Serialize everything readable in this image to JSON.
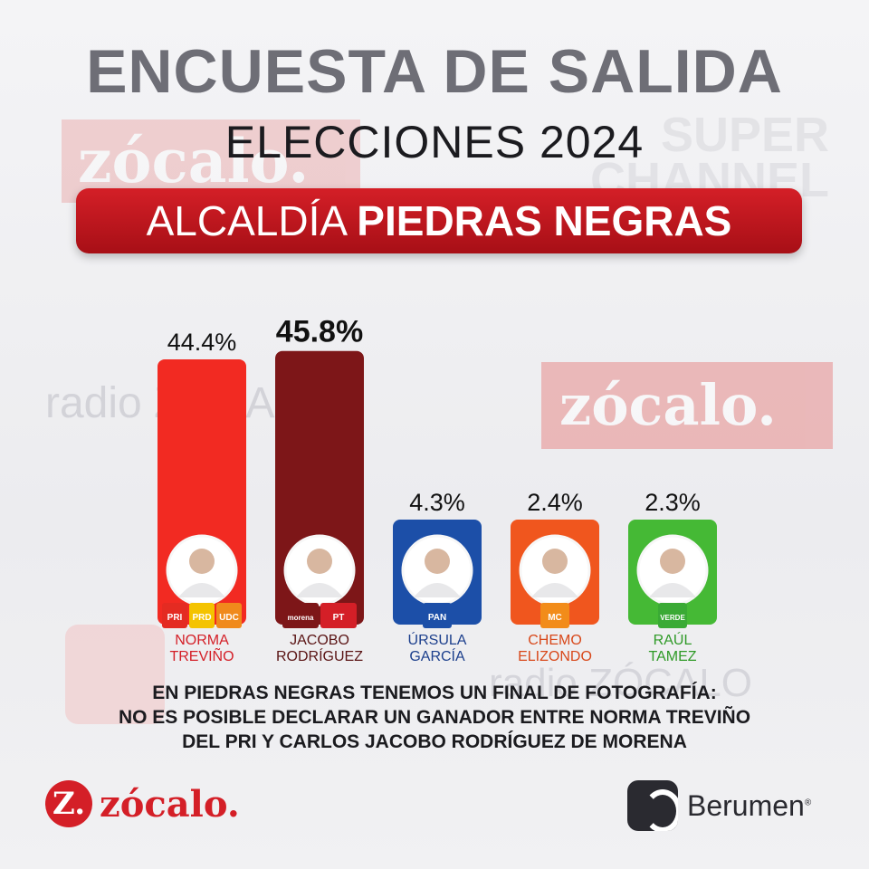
{
  "header": {
    "title": "ENCUESTA DE SALIDA",
    "subtitle": "ELECCIONES 2024",
    "banner_prefix": "ALCALDÍA",
    "banner_place": "PIEDRAS NEGRAS"
  },
  "colors": {
    "banner": "#c4161d",
    "title": "#6e6e76",
    "accent": "#d41f27"
  },
  "chart_data": {
    "type": "bar",
    "title": "",
    "xlabel": "",
    "ylabel": "",
    "ylim": [
      0,
      50
    ],
    "categories": [
      "NORMA TREVIÑO",
      "JACOBO RODRÍGUEZ",
      "ÚRSULA GARCÍA",
      "CHEMO ELIZONDO",
      "RAÚL TAMEZ"
    ],
    "values": [
      44.4,
      45.8,
      4.3,
      2.4,
      2.3
    ],
    "labels": [
      "44.4%",
      "45.8%",
      "4.3%",
      "2.4%",
      "2.3%"
    ],
    "name_lines": [
      [
        "NORMA",
        "TREVIÑO"
      ],
      [
        "JACOBO",
        "RODRÍGUEZ"
      ],
      [
        "ÚRSULA",
        "GARCÍA"
      ],
      [
        "CHEMO",
        "ELIZONDO"
      ],
      [
        "RAÚL",
        "TAMEZ"
      ]
    ],
    "bar_colors": [
      "#f22a22",
      "#7d1618",
      "#1c4fa8",
      "#f0561e",
      "#45b935"
    ],
    "name_colors": [
      "#d41f27",
      "#5a1414",
      "#1c3f8c",
      "#d8481a",
      "#2f9a27"
    ],
    "party_badges": [
      [
        "PRI",
        "PRD",
        "UDC"
      ],
      [
        "morena",
        "PT"
      ],
      [
        "PAN"
      ],
      [
        "MC"
      ],
      [
        "VERDE"
      ]
    ],
    "badge_colors": [
      [
        "#e42b22",
        "#f4c300",
        "#f08a1c"
      ],
      [
        "#7d1618",
        "#d41f27"
      ],
      [
        "#1c4fa8"
      ],
      [
        "#f28c1a"
      ],
      [
        "#3aaa35"
      ]
    ],
    "highlight": 1
  },
  "footnote": {
    "line1": "EN PIEDRAS NEGRAS TENEMOS UN FINAL DE FOTOGRAFÍA:",
    "line2": "NO ES POSIBLE DECLARAR UN GANADOR ENTRE NORMA TREVIÑO",
    "line3": "DEL PRI Y CARLOS JACOBO RODRÍGUEZ DE MORENA"
  },
  "watermarks": {
    "zocalo": "zócalo.",
    "channel": "SUPER CHANNEL",
    "radio": "radio ZÓCALO"
  },
  "logos": {
    "zocalo_letter": "Z.",
    "zocalo_word": "zócalo.",
    "berumen_word": "Berumen",
    "berumen_mark": "®"
  }
}
